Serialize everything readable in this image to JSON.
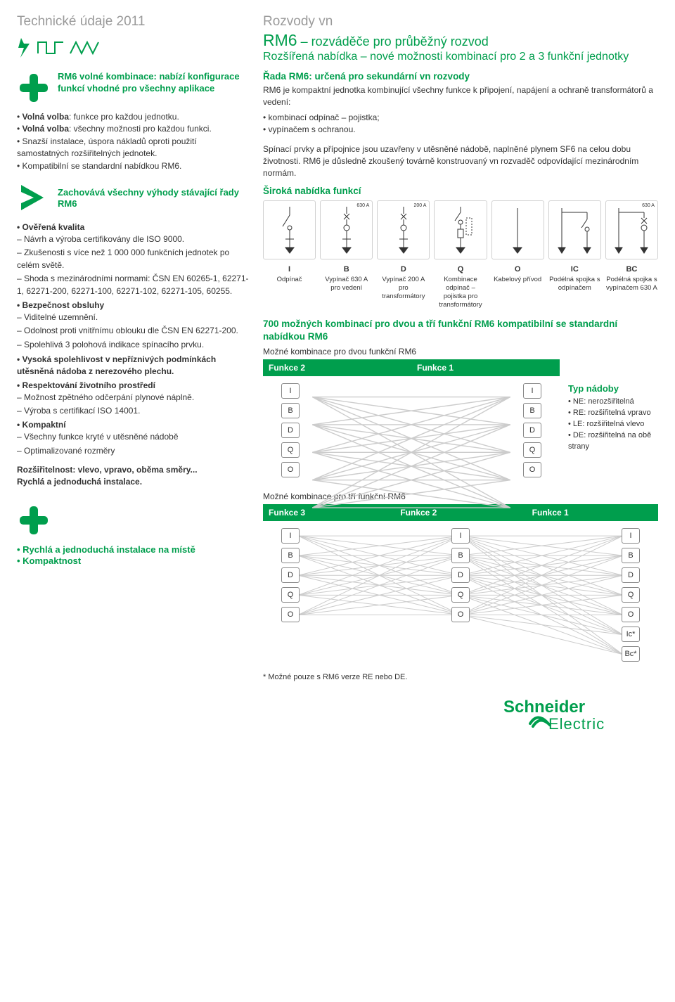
{
  "header": {
    "tech": "Technické údaje 2011",
    "rozvody": "Rozvody vn",
    "rm6": "RM6",
    "rm6_sub": " – rozváděče pro průběžný rozvod",
    "sub2": "Rozšířená nabídka – nové možnosti kombinací pro 2 a 3 funkční jednotky"
  },
  "leftcol": {
    "plus1": "RM6 volné kombinace: nabízí konfigurace funkcí vhodné pro všechny aplikace",
    "bullets1": [
      {
        "b": "Volná volba",
        "t": ": funkce pro každou jednotku."
      },
      {
        "b": "Volná volba",
        "t": ": všechny možnosti pro každou funkci."
      },
      {
        "b": "",
        "t": "Snazší instalace, úspora nákladů oproti použití samostatných rozšiřitelných jednotek."
      },
      {
        "b": "",
        "t": "Kompatibilní se standardní nabídkou RM6."
      }
    ],
    "gt": "Zachovává všechny výhody stávající řady RM6",
    "sec_kvalita": "Ověřená kvalita",
    "kvalita_items": [
      "Návrh a výroba certifikovány dle ISO 9000.",
      "Zkušenosti s více než 1 000 000 funkčních jednotek po celém světě.",
      "Shoda s mezinárodními normami: ČSN EN 60265-1, 62271-1, 62271-200, 62271-100, 62271-102, 62271-105, 60255."
    ],
    "sec_bezp": "Bezpečnost obsluhy",
    "bezp_items": [
      "Viditelné uzemnění.",
      "Odolnost proti vnitřnímu oblouku dle ČSN EN 62271-200.",
      "Spolehlivá 3 polohová indikace spínacího prvku."
    ],
    "sec_spol": "Vysoká spolehlivost v nepříznivých podmínkách utěsněná nádoba z nerezového plechu.",
    "sec_resp": "Respektování životního prostředí",
    "resp_items": [
      "Možnost zpětného odčerpání plynové náplně.",
      "Výroba s certifikací ISO 14001."
    ],
    "sec_komp": "Kompaktní",
    "komp_items": [
      "Všechny funkce kryté v utěsněné nádobě",
      "Optimalizované rozměry"
    ],
    "rozs": "Rozšiřitelnost: vlevo, vpravo, oběma směry...",
    "rychla": "Rychlá a jednoduchá instalace.",
    "footer_plus1": "• Rychlá a jednoduchá instalace na místě",
    "footer_plus2": "• Kompaktnost"
  },
  "rightcol": {
    "h1": "Řada RM6: určená pro sekundární vn rozvody",
    "p1": "RM6 je kompaktní jednotka kombinující všechny funkce k připojení, napájení a ochraně transformátorů a vedení:",
    "b1": [
      "kombinací odpínač – pojistka;",
      "vypínačem s ochranou."
    ],
    "p2": "Spínací prvky a přípojnice jsou uzavřeny v utěsněné nádobě, naplněné plynem SF6 na celou dobu životnosti. RM6 je důsledně zkoušený továrně konstruovaný vn rozvaděč odpovídající mezinárodním normám.",
    "h2": "Široká nabídka funkcí",
    "funcs": [
      {
        "code": "I",
        "label": "Odpínač",
        "amp": ""
      },
      {
        "code": "B",
        "label": "Vypínač 630 A pro vedení",
        "amp": "630 A"
      },
      {
        "code": "D",
        "label": "Vypínač 200 A pro transformátory",
        "amp": "200 A"
      },
      {
        "code": "Q",
        "label": "Kombinace odpínač – pojistka pro transformátory",
        "amp": ""
      },
      {
        "code": "O",
        "label": "Kabelový přívod",
        "amp": ""
      },
      {
        "code": "IC",
        "label": "Podélná spojka s odpínačem",
        "amp": ""
      },
      {
        "code": "BC",
        "label": "Podélná spojka s vypínačem 630 A",
        "amp": "630 A"
      }
    ],
    "combo_h": "700 možných kombinací pro dvou a tří funkční RM6 kompatibilní se standardní nabídkou RM6",
    "combo_sub2": "Možné kombinace pro dvou funkční RM6",
    "f2": "Funkce 2",
    "f1": "Funkce 1",
    "f3": "Funkce 3",
    "nodes2": [
      "I",
      "B",
      "D",
      "Q",
      "O"
    ],
    "typn_h": "Typ nádoby",
    "typn": [
      "NE: nerozšiřitelná",
      "RE: rozšiřitelná vpravo",
      "LE: rozšiřitelná vlevo",
      "DE: rozšiřitelná na obě strany"
    ],
    "combo_sub3": "Možné kombinace pro tří funkční RM6",
    "nodes3_extra": [
      "Ic*",
      "Bc*"
    ],
    "footnote": "* Možné pouze s RM6 verze RE nebo DE."
  },
  "colors": {
    "green": "#009e4d",
    "grey": "#9a9a9a",
    "border": "#d0d0d0",
    "line": "#cccccc"
  }
}
